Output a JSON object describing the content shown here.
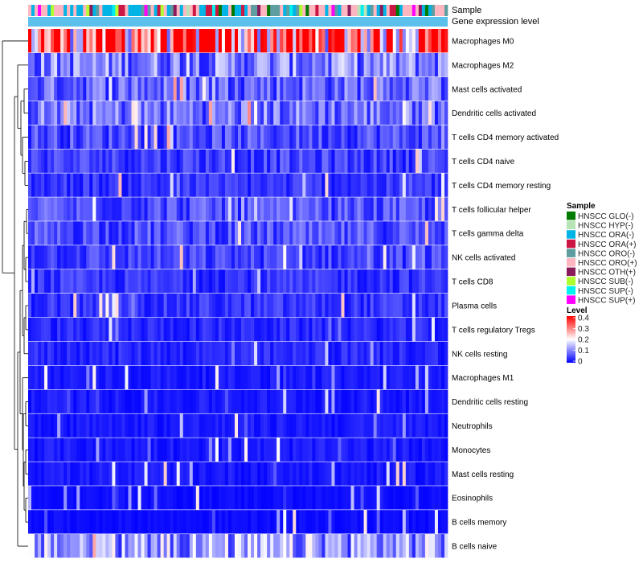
{
  "chart_data": {
    "type": "heatmap",
    "title": "",
    "annotation_tracks": [
      "Sample",
      "Gene expression level"
    ],
    "rows": [
      "Macrophages M0",
      "Macrophages M2",
      "Mast cells activated",
      "Dendritic cells activated",
      "T cells CD4 memory activated",
      "T cells CD4 naive",
      "T cells CD4 memory resting",
      "T cells follicular helper",
      "T cells gamma delta",
      "NK cells activated",
      "T cells CD8",
      "Plasma cells",
      "T cells regulatory  Tregs",
      "NK cells resting",
      "Macrophages M1",
      "Dendritic cells resting",
      "Neutrophils",
      "Monocytes",
      "Mast cells resting",
      "Eosinophils",
      "B cells memory",
      "B cells naive"
    ],
    "row_mean_levels": [
      0.32,
      0.1,
      0.08,
      0.09,
      0.06,
      0.05,
      0.04,
      0.06,
      0.06,
      0.05,
      0.04,
      0.04,
      0.03,
      0.03,
      0.02,
      0.02,
      0.02,
      0.02,
      0.02,
      0.01,
      0.01,
      0.12
    ],
    "n_samples": 130,
    "sample_legend": {
      "title": "Sample",
      "items": [
        {
          "label": "HNSCC GLO(-)",
          "color": "#007a00"
        },
        {
          "label": "HNSCC HYP(-)",
          "color": "#b7e3b7"
        },
        {
          "label": "HNSCC ORA(-)",
          "color": "#00b4e6"
        },
        {
          "label": "HNSCC ORA(+)",
          "color": "#cc1744"
        },
        {
          "label": "HNSCC ORO(-)",
          "color": "#5f9ea0"
        },
        {
          "label": "HNSCC ORO(+)",
          "color": "#ffb6c1"
        },
        {
          "label": "HNSCC OTH(+)",
          "color": "#8b1a5a"
        },
        {
          "label": "HNSCC SUB(-)",
          "color": "#adff2f"
        },
        {
          "label": "HNSCC SUP(-)",
          "color": "#00f0f0"
        },
        {
          "label": "HNSCC SUP(+)",
          "color": "#ff00ff"
        }
      ]
    },
    "level_legend": {
      "title": "Level",
      "range": [
        0,
        0.4
      ],
      "ticks": [
        "0.4",
        "0.3",
        "0.2",
        "0.1",
        "0"
      ],
      "tick_values": [
        0.4,
        0.3,
        0.2,
        0.1,
        0
      ],
      "colors": {
        "low": "#0000ff",
        "mid": "#ffffff",
        "high": "#ff0000"
      }
    },
    "gene_expression_track_color": "#5bc0eb"
  }
}
